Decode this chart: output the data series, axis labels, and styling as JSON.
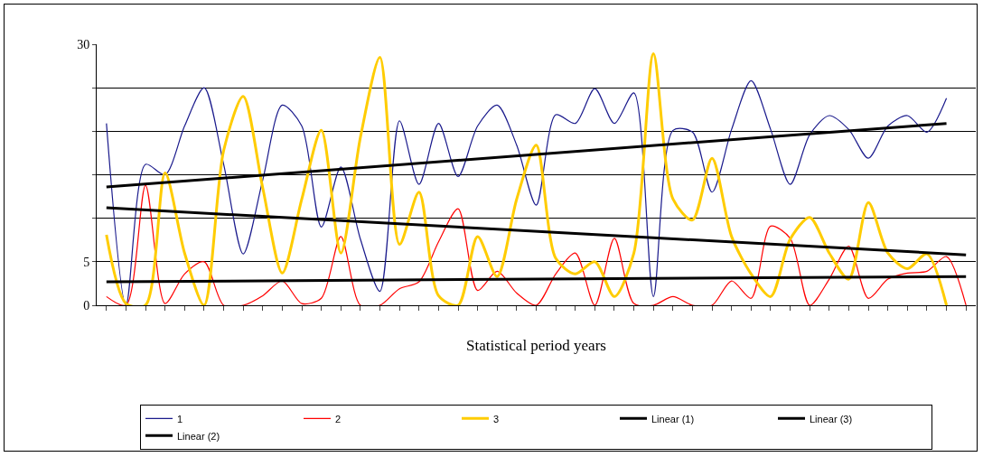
{
  "chart_data": {
    "type": "line",
    "xlabel": "Statistical period years",
    "categories": [
      null,
      null,
      null,
      null,
      null,
      null,
      null,
      null,
      null,
      null,
      null,
      null,
      null,
      null,
      null,
      null,
      null,
      null,
      null,
      null,
      null,
      null,
      null,
      null,
      null,
      null,
      null,
      null,
      null,
      null,
      null,
      null,
      null,
      null,
      null,
      null,
      null,
      null,
      null,
      null,
      null,
      null,
      null,
      null,
      null
    ],
    "series": [
      {
        "name": "1",
        "color": "#1a1a8c",
        "values": [
          20.9,
          0,
          16.2,
          15,
          20.6,
          25,
          16.2,
          5.9,
          14.4,
          23,
          20.6,
          9,
          15.9,
          7.6,
          1.6,
          21.2,
          13.9,
          20.9,
          14.8,
          20.6,
          23,
          18.4,
          11.5,
          21.9,
          20.9,
          24.9,
          20.9,
          24.4,
          1,
          20.1,
          19.9,
          13,
          20.2,
          25.8,
          20.2,
          13.9,
          19.6,
          21.8,
          20.2,
          16.9,
          20.6,
          21.8,
          19.9,
          23.8,
          null
        ]
      },
      {
        "name": "2",
        "color": "#ff0000",
        "values": [
          1,
          0,
          13.8,
          0.2,
          3.6,
          5,
          0,
          0,
          1.1,
          2.8,
          0.2,
          0.8,
          7.9,
          0,
          0,
          1.9,
          2.7,
          7.3,
          11.1,
          1.7,
          3.9,
          1.4,
          0,
          3.6,
          6,
          0,
          7.7,
          0.2,
          0,
          1,
          0,
          0,
          2.8,
          0.8,
          9.1,
          7.7,
          0,
          3,
          6.8,
          0.8,
          3,
          3.7,
          3.9,
          5.6,
          0
        ]
      },
      {
        "name": "3",
        "color": "#ffcc00",
        "values": [
          8.1,
          0.2,
          0,
          15.2,
          6,
          0,
          17.8,
          24,
          13.5,
          3.7,
          12.2,
          20.1,
          6,
          19.3,
          28.5,
          7,
          13,
          1.1,
          0,
          7.9,
          3.3,
          12.2,
          18.4,
          5.4,
          3.6,
          5,
          1,
          6,
          28.9,
          12.2,
          9.8,
          16.9,
          7.9,
          3.6,
          1,
          7.6,
          10.1,
          6,
          3,
          11.8,
          6,
          4.2,
          5.9,
          0,
          null
        ]
      },
      {
        "name": "Linear (1)",
        "color": "#000000",
        "values": [
          13.6,
          null,
          null,
          null,
          null,
          null,
          null,
          null,
          null,
          null,
          null,
          null,
          null,
          null,
          null,
          null,
          null,
          null,
          null,
          null,
          null,
          null,
          null,
          null,
          null,
          null,
          null,
          null,
          null,
          null,
          null,
          null,
          null,
          null,
          null,
          null,
          null,
          null,
          null,
          null,
          null,
          null,
          null,
          20.9,
          null
        ]
      },
      {
        "name": "Linear (3)",
        "color": "#000000",
        "values": [
          11.2,
          null,
          null,
          null,
          null,
          null,
          null,
          null,
          null,
          null,
          null,
          null,
          null,
          null,
          null,
          null,
          null,
          null,
          null,
          null,
          null,
          null,
          null,
          null,
          null,
          null,
          null,
          null,
          null,
          null,
          null,
          null,
          null,
          null,
          null,
          null,
          null,
          null,
          null,
          null,
          null,
          null,
          null,
          null,
          5.8
        ]
      },
      {
        "name": "Linear (2)",
        "color": "#000000",
        "values": [
          2.7,
          null,
          null,
          null,
          null,
          null,
          null,
          null,
          null,
          null,
          null,
          null,
          null,
          null,
          null,
          null,
          null,
          null,
          null,
          null,
          null,
          null,
          null,
          null,
          null,
          null,
          null,
          null,
          null,
          null,
          null,
          null,
          null,
          null,
          null,
          null,
          null,
          null,
          null,
          null,
          null,
          null,
          null,
          null,
          3.3
        ]
      }
    ],
    "ylim": [
      0,
      30
    ],
    "yticks": [
      0,
      5,
      {
        "value": 10,
        "label": null
      },
      {
        "value": 15,
        "label": null
      },
      {
        "value": 20,
        "label": null
      },
      {
        "value": 25,
        "label": null
      },
      30
    ],
    "grid": "y",
    "legend": "bottom",
    "marker": "none",
    "line_style": "solid"
  }
}
